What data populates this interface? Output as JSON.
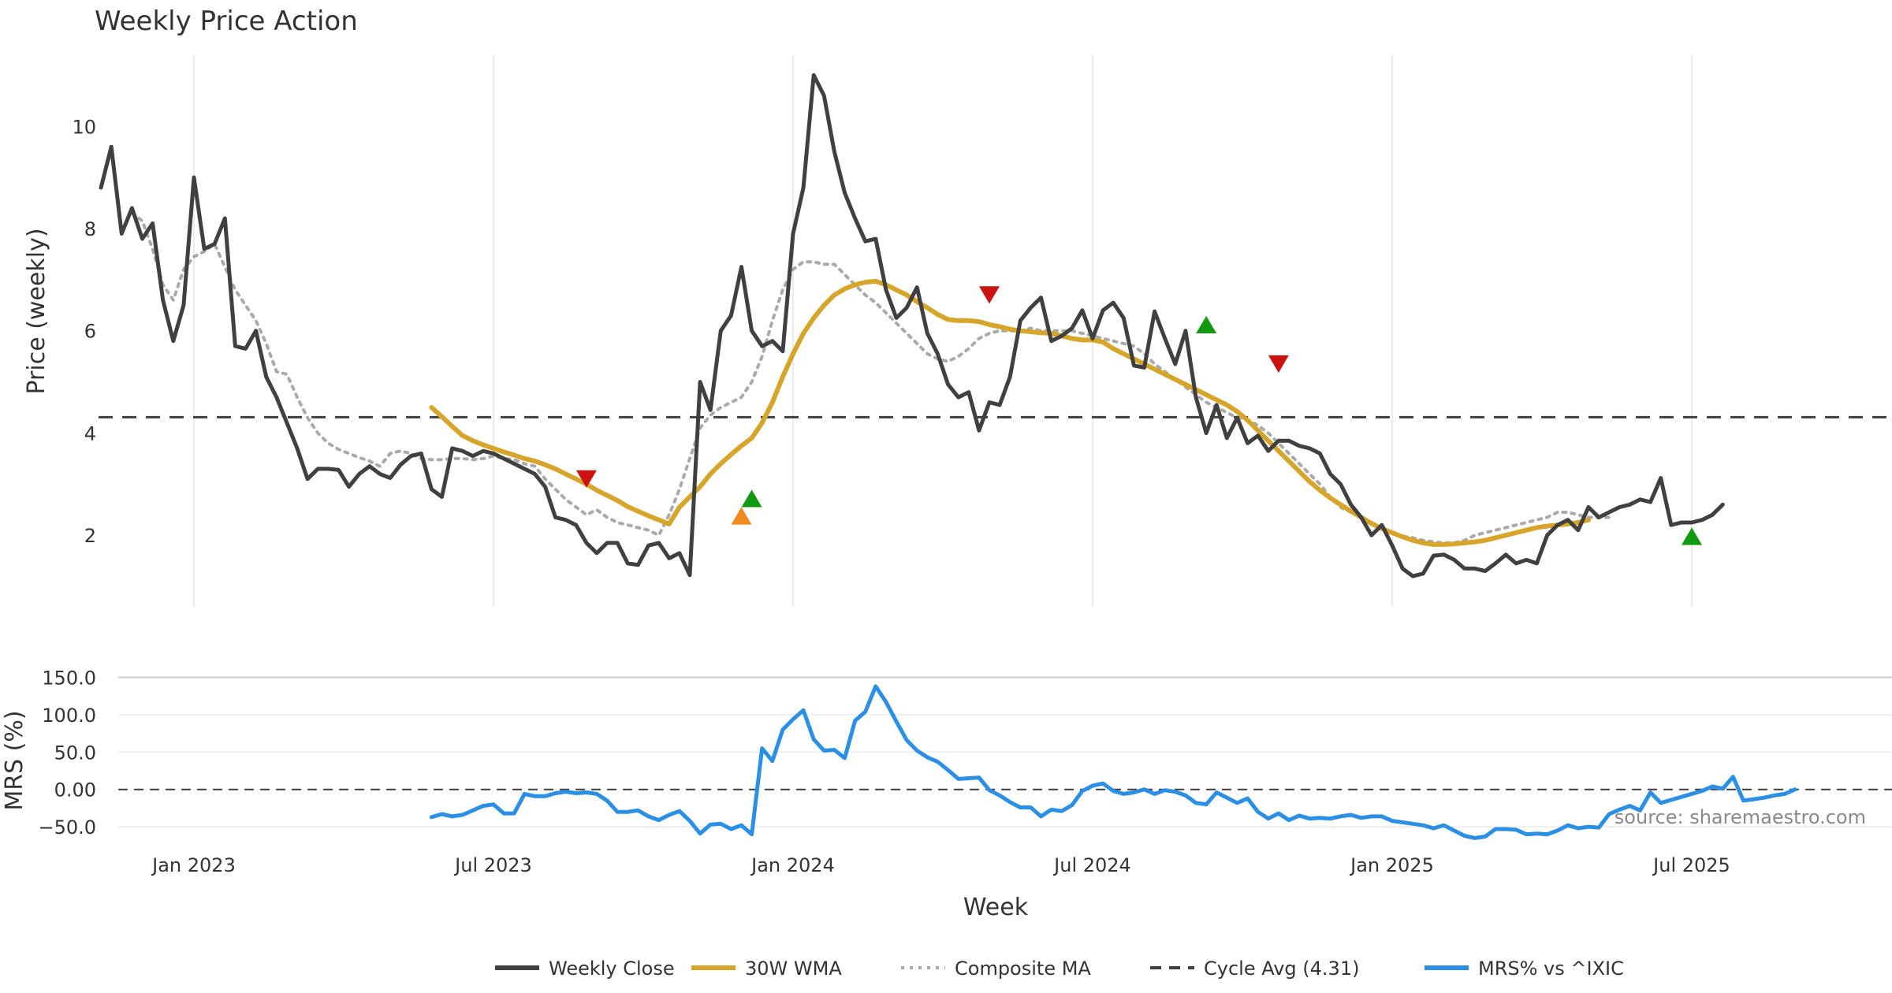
{
  "chart_data": {
    "type": "line",
    "title": "Weekly Price Action",
    "source_note": "source: sharemaestro.com",
    "xlabel": "Week",
    "x_tick_labels": [
      "Jan 2023",
      "Jul 2023",
      "Jan 2024",
      "Jul 2024",
      "Jan 2025",
      "Jul 2025"
    ],
    "x_range_weeks": [
      0,
      180
    ],
    "x_tick_weeks": [
      9,
      38,
      67,
      96,
      125,
      154
    ],
    "price_panel": {
      "ylabel": "Price (weekly)",
      "ylim": [
        0.6,
        11.7
      ],
      "y_ticks": [
        2,
        4,
        6,
        8,
        10
      ],
      "y_tick_labels": [
        "2",
        "4",
        "6",
        "8",
        "10"
      ],
      "cycle_avg": 4.31,
      "series": [
        {
          "name": "Weekly Close",
          "color": "#404040",
          "style": "solid",
          "start_week": 0,
          "values": [
            8.8,
            9.6,
            7.9,
            8.4,
            7.8,
            8.1,
            6.6,
            5.8,
            6.5,
            9.0,
            7.6,
            7.7,
            8.2,
            5.7,
            5.65,
            6.0,
            5.1,
            4.7,
            4.2,
            3.7,
            3.1,
            3.3,
            3.3,
            3.28,
            2.95,
            3.2,
            3.35,
            3.2,
            3.12,
            3.38,
            3.55,
            3.6,
            2.9,
            2.75,
            3.7,
            3.65,
            3.55,
            3.65,
            3.6,
            3.5,
            3.4,
            3.3,
            3.2,
            2.95,
            2.35,
            2.3,
            2.2,
            1.85,
            1.65,
            1.85,
            1.85,
            1.45,
            1.42,
            1.8,
            1.85,
            1.55,
            1.65,
            1.22,
            5.0,
            4.45,
            6.0,
            6.3,
            7.25,
            6.0,
            5.7,
            5.8,
            5.6,
            7.9,
            8.8,
            11.0,
            10.6,
            9.5,
            8.7,
            8.2,
            7.75,
            7.8,
            6.8,
            6.25,
            6.45,
            6.85,
            5.95,
            5.55,
            4.95,
            4.7,
            4.8,
            4.05,
            4.6,
            4.55,
            5.1,
            6.2,
            6.45,
            6.65,
            5.8,
            5.9,
            6.05,
            6.4,
            5.85,
            6.4,
            6.55,
            6.25,
            5.32,
            5.28,
            6.38,
            5.85,
            5.35,
            6.0,
            4.7,
            4.0,
            4.55,
            3.9,
            4.3,
            3.8,
            3.95,
            3.65,
            3.85,
            3.85,
            3.75,
            3.7,
            3.6,
            3.2,
            3.0,
            2.6,
            2.35,
            2.0,
            2.2,
            1.8,
            1.35,
            1.2,
            1.25,
            1.6,
            1.62,
            1.52,
            1.35,
            1.35,
            1.3,
            1.45,
            1.62,
            1.45,
            1.52,
            1.45,
            2.0,
            2.2,
            2.3,
            2.1,
            2.55,
            2.35,
            2.45,
            2.55,
            2.6,
            2.7,
            2.65,
            3.12,
            2.2,
            2.25,
            2.25,
            2.3,
            2.4,
            2.6
          ]
        },
        {
          "name": "30W WMA",
          "color": "#d6a52a",
          "style": "solid",
          "start_week": 32,
          "values": [
            4.5,
            4.32,
            4.13,
            3.95,
            3.85,
            3.77,
            3.7,
            3.63,
            3.57,
            3.5,
            3.45,
            3.38,
            3.3,
            3.2,
            3.1,
            3.0,
            2.88,
            2.78,
            2.68,
            2.56,
            2.47,
            2.38,
            2.3,
            2.22,
            2.55,
            2.75,
            2.95,
            3.2,
            3.4,
            3.58,
            3.75,
            3.9,
            4.2,
            4.6,
            5.1,
            5.55,
            5.95,
            6.25,
            6.5,
            6.7,
            6.82,
            6.9,
            6.95,
            6.97,
            6.9,
            6.8,
            6.7,
            6.57,
            6.45,
            6.32,
            6.22,
            6.2,
            6.2,
            6.18,
            6.12,
            6.08,
            6.03,
            6.0,
            5.98,
            5.96,
            5.95,
            5.9,
            5.85,
            5.82,
            5.82,
            5.78,
            5.65,
            5.55,
            5.45,
            5.35,
            5.25,
            5.15,
            5.05,
            4.95,
            4.85,
            4.75,
            4.65,
            4.55,
            4.42,
            4.25,
            4.05,
            3.85,
            3.65,
            3.45,
            3.25,
            3.05,
            2.88,
            2.73,
            2.6,
            2.47,
            2.35,
            2.23,
            2.13,
            2.05,
            1.97,
            1.9,
            1.85,
            1.82,
            1.82,
            1.83,
            1.85,
            1.87,
            1.9,
            1.95,
            2.0,
            2.05,
            2.1,
            2.15,
            2.18,
            2.2,
            2.22,
            2.25,
            2.3
          ]
        },
        {
          "name": "Composite MA",
          "color": "#aaaaaa",
          "style": "dotted",
          "start_week": 3,
          "values": [
            8.3,
            8.15,
            7.6,
            6.9,
            6.6,
            7.2,
            7.45,
            7.55,
            7.7,
            7.25,
            6.8,
            6.5,
            6.2,
            5.75,
            5.2,
            5.15,
            4.7,
            4.3,
            4.0,
            3.8,
            3.68,
            3.6,
            3.52,
            3.45,
            3.35,
            3.6,
            3.65,
            3.6,
            3.5,
            3.48,
            3.48,
            3.5,
            3.5,
            3.48,
            3.5,
            3.55,
            3.5,
            3.48,
            3.4,
            3.35,
            3.1,
            2.9,
            2.7,
            2.55,
            2.4,
            2.5,
            2.35,
            2.25,
            2.2,
            2.15,
            2.1,
            2.0,
            2.4,
            2.9,
            3.5,
            4.1,
            4.35,
            4.5,
            4.6,
            4.7,
            5.0,
            5.5,
            6.2,
            6.8,
            7.2,
            7.35,
            7.35,
            7.3,
            7.3,
            7.1,
            6.9,
            6.7,
            6.55,
            6.35,
            6.15,
            5.95,
            5.75,
            5.55,
            5.45,
            5.4,
            5.5,
            5.65,
            5.85,
            5.95,
            6.0,
            6.0,
            6.0,
            6.05,
            6.0,
            6.0,
            6.0,
            6.0,
            5.95,
            5.9,
            5.85,
            5.8,
            5.75,
            5.7,
            5.55,
            5.35,
            5.2,
            5.05,
            4.9,
            4.75,
            4.6,
            4.5,
            4.4,
            4.3,
            4.25,
            4.15,
            4.0,
            3.8,
            3.6,
            3.4,
            3.2,
            3.0,
            2.75,
            2.55,
            2.45,
            2.35,
            2.25,
            2.15,
            2.05,
            1.98,
            1.95,
            1.9,
            1.87,
            1.85,
            1.85,
            1.9,
            2.0,
            2.05,
            2.1,
            2.15,
            2.2,
            2.25,
            2.3,
            2.35,
            2.45,
            2.45,
            2.4,
            2.35,
            2.35,
            2.35
          ]
        },
        {
          "name": "Cycle Avg (4.31)",
          "color": "#404040",
          "style": "dashed"
        }
      ],
      "markers": [
        {
          "week": 47,
          "value": 3.1,
          "kind": "sell",
          "color": "#cc1111"
        },
        {
          "week": 62,
          "value": 2.38,
          "kind": "buy",
          "color": "#f08a1e"
        },
        {
          "week": 63,
          "value": 2.72,
          "kind": "buy",
          "color": "#119911"
        },
        {
          "week": 86,
          "value": 6.7,
          "kind": "sell",
          "color": "#cc1111"
        },
        {
          "week": 107,
          "value": 6.12,
          "kind": "buy",
          "color": "#119911"
        },
        {
          "week": 114,
          "value": 5.35,
          "kind": "sell",
          "color": "#cc1111"
        },
        {
          "week": 154,
          "value": 1.98,
          "kind": "buy",
          "color": "#119911"
        }
      ]
    },
    "mrs_panel": {
      "ylabel": "MRS (%)",
      "ylim": [
        -72,
        160
      ],
      "y_ticks": [
        150,
        100,
        50,
        0,
        -50
      ],
      "y_tick_labels": [
        "150.0",
        "100.0",
        "50.0",
        "0.00",
        "−50.0"
      ],
      "series": [
        {
          "name": "MRS% vs ^IXIC",
          "color": "#2b8fe5",
          "style": "solid",
          "start_week": 32,
          "values": [
            -37,
            -33,
            -36,
            -34,
            -28,
            -22,
            -20,
            -32,
            -32,
            -6,
            -9,
            -9,
            -5,
            -3,
            -5,
            -4,
            -6,
            -15,
            -30,
            -30,
            -28,
            -36,
            -41,
            -34,
            -29,
            -42,
            -59,
            -47,
            -46,
            -53,
            -48,
            -60,
            55,
            38,
            80,
            94,
            106,
            67,
            52,
            53,
            42,
            92,
            104,
            138,
            117,
            91,
            66,
            52,
            43,
            37,
            26,
            14,
            15,
            16,
            -1,
            -8,
            -17,
            -24,
            -24,
            -36,
            -27,
            -29,
            -21,
            -2,
            5,
            8,
            -2,
            -6,
            -4,
            0,
            -6,
            -1,
            -3,
            -8,
            -18,
            -20,
            -4,
            -11,
            -18,
            -12,
            -30,
            -39,
            -32,
            -41,
            -35,
            -39,
            -38,
            -39,
            -36,
            -34,
            -38,
            -36,
            -36,
            -42,
            -44,
            -46,
            -48,
            -52,
            -48,
            -55,
            -62,
            -65,
            -63,
            -53,
            -53,
            -54,
            -60,
            -59,
            -60,
            -55,
            -48,
            -52,
            -50,
            -51,
            -33,
            -27,
            -22,
            -28,
            -4,
            -18,
            -14,
            -10,
            -6,
            -2,
            4,
            1,
            17,
            -15,
            -13,
            -11,
            -8,
            -6,
            0
          ]
        }
      ]
    },
    "legend": {
      "position": "bottom-center",
      "items": [
        {
          "label": "Weekly Close",
          "color": "#404040",
          "style": "solid"
        },
        {
          "label": "30W WMA",
          "color": "#d6a52a",
          "style": "solid"
        },
        {
          "label": "Composite MA",
          "color": "#aaaaaa",
          "style": "dotted"
        },
        {
          "label": "Cycle Avg (4.31)",
          "color": "#404040",
          "style": "dashed"
        },
        {
          "label": "MRS% vs ^IXIC",
          "color": "#2b8fe5",
          "style": "solid"
        }
      ]
    }
  }
}
